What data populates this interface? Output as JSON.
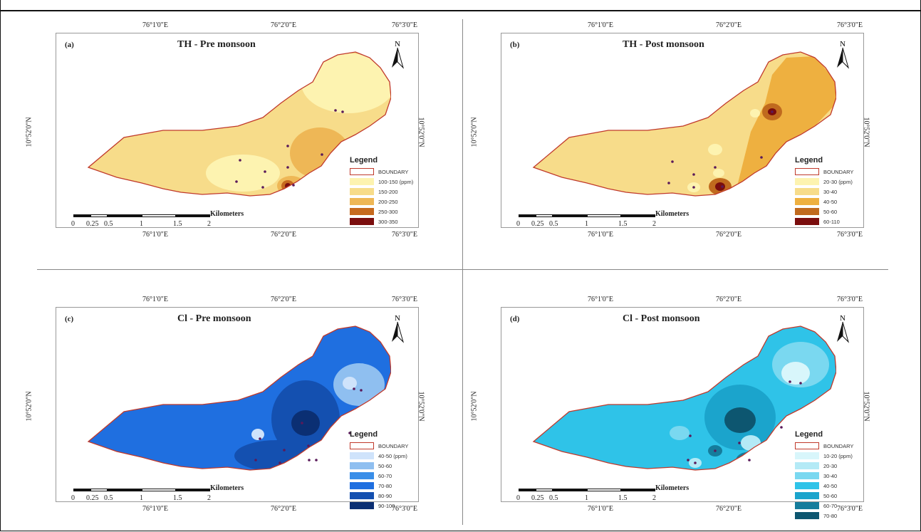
{
  "panels": [
    {
      "id": "a",
      "label": "(a)",
      "title": "TH - Pre monsoon",
      "coords_top": [
        "76°1'0\"E",
        "76°2'0\"E",
        "76°3'0\"E"
      ],
      "coords_bottom": [
        "76°1'0\"E",
        "76°2'0\"E",
        "76°3'0\"E"
      ],
      "lat_label": "10°52'0\"N",
      "legend_title": "Legend",
      "boundary_label": "BOUNDARY",
      "classes": [
        {
          "label": "100-150 (ppm)",
          "color": "#fdf3b0"
        },
        {
          "label": "150-200",
          "color": "#f7dc8a"
        },
        {
          "label": "200-250",
          "color": "#eeb756"
        },
        {
          "label": "250-300",
          "color": "#c66a1e"
        },
        {
          "label": "300-350",
          "color": "#7a0d0d"
        }
      ],
      "scale_labels": [
        "0",
        "0.25",
        "0.5",
        "1",
        "1.5",
        "2"
      ],
      "scale_unit": "Kilometers"
    },
    {
      "id": "b",
      "label": "(b)",
      "title": "TH - Post monsoon",
      "coords_top": [
        "76°1'0\"E",
        "76°2'0\"E",
        "76°3'0\"E"
      ],
      "coords_bottom": [
        "76°1'0\"E",
        "76°2'0\"E",
        "76°3'0\"E"
      ],
      "lat_label": "10°52'0\"N",
      "legend_title": "Legend",
      "boundary_label": "BOUNDARY",
      "classes": [
        {
          "label": "20-30 (ppm)",
          "color": "#fdf3b0"
        },
        {
          "label": "30-40",
          "color": "#f7dc8a"
        },
        {
          "label": "40-50",
          "color": "#eeb040"
        },
        {
          "label": "50-60",
          "color": "#c06a1e"
        },
        {
          "label": "60-110",
          "color": "#7a0d0d"
        }
      ],
      "scale_labels": [
        "0",
        "0.25",
        "0.5",
        "1",
        "1.5",
        "2"
      ],
      "scale_unit": "Kilometers"
    },
    {
      "id": "c",
      "label": "(c)",
      "title": "Cl - Pre monsoon",
      "coords_top": [
        "76°1'0\"E",
        "76°2'0\"E",
        "76°3'0\"E"
      ],
      "coords_bottom": [
        "76°1'0\"E",
        "76°2'0\"E",
        "76°3'0\"E"
      ],
      "lat_label": "10°52'0\"N",
      "legend_title": "Legend",
      "boundary_label": "BOUNDARY",
      "classes": [
        {
          "label": "40-50 (ppm)",
          "color": "#cfe3fb"
        },
        {
          "label": "50-60",
          "color": "#8fbff0"
        },
        {
          "label": "60-70",
          "color": "#3a8ee8"
        },
        {
          "label": "70-80",
          "color": "#1f6fe0"
        },
        {
          "label": "80-90",
          "color": "#1450b0"
        },
        {
          "label": "90-100",
          "color": "#0b2f73"
        }
      ],
      "scale_labels": [
        "0",
        "0.25",
        "0.5",
        "1",
        "1.5",
        "2"
      ],
      "scale_unit": "Kilometers"
    },
    {
      "id": "d",
      "label": "(d)",
      "title": "Cl - Post monsoon",
      "coords_top": [
        "76°1'0\"E",
        "76°2'0\"E",
        "76°3'0\"E"
      ],
      "coords_bottom": [
        "76°1'0\"E",
        "76°2'0\"E",
        "76°3'0\"E"
      ],
      "lat_label": "10°52'0\"N",
      "legend_title": "Legend",
      "boundary_label": "BOUNDARY",
      "classes": [
        {
          "label": "10-20 (ppm)",
          "color": "#d8f6fb"
        },
        {
          "label": "20-30",
          "color": "#b4eaf6"
        },
        {
          "label": "30-40",
          "color": "#7ad8f0"
        },
        {
          "label": "40-50",
          "color": "#2fc3e8"
        },
        {
          "label": "50-60",
          "color": "#1ba4cc"
        },
        {
          "label": "60-70",
          "color": "#157c9c"
        },
        {
          "label": "70-80",
          "color": "#0d5670"
        }
      ],
      "scale_labels": [
        "0",
        "0.25",
        "0.5",
        "1",
        "1.5",
        "2"
      ],
      "scale_unit": "Kilometers"
    }
  ],
  "north_label": "N"
}
